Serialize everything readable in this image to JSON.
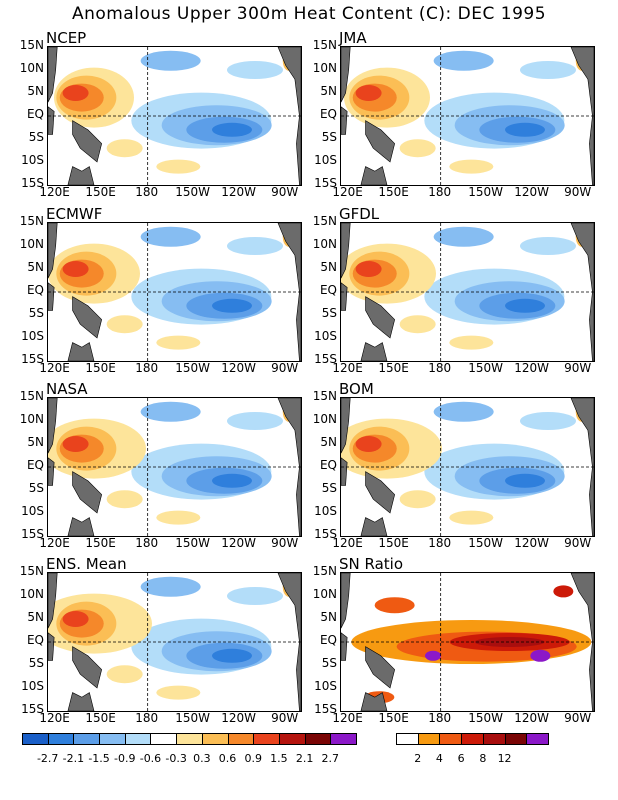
{
  "title": "Anomalous Upper 300m Heat Content (C): DEC 1995",
  "chart_data": {
    "type": "heatmap",
    "x_ticks": [
      "120E",
      "150E",
      "180",
      "150W",
      "120W",
      "90W"
    ],
    "y_ticks": [
      "15N",
      "10N",
      "5N",
      "EQ",
      "5S",
      "10S",
      "15S"
    ],
    "panels": [
      {
        "name": "NCEP"
      },
      {
        "name": "JMA"
      },
      {
        "name": "ECMWF"
      },
      {
        "name": "GFDL"
      },
      {
        "name": "NASA"
      },
      {
        "name": "BOM"
      },
      {
        "name": "ENS. Mean"
      },
      {
        "name": "SN Ratio"
      }
    ],
    "anomaly_colorbar": {
      "colors": [
        "#1a5fc8",
        "#2f7fdc",
        "#5c9ee8",
        "#86bdf2",
        "#b3ddf9",
        "#ffffff",
        "#fde49a",
        "#fbbe55",
        "#f5882a",
        "#e9431d",
        "#b5140e",
        "#7a0505",
        "#8b18c8"
      ],
      "labels": [
        "-2.7",
        "-2.1",
        "-1.5",
        "-0.9",
        "-0.6",
        "-0.3",
        "0.3",
        "0.6",
        "0.9",
        "1.5",
        "2.1",
        "2.7"
      ]
    },
    "sn_colorbar": {
      "colors": [
        "#ffffff",
        "#f79a11",
        "#ef5a12",
        "#cc1a08",
        "#a80e0e",
        "#7a0505",
        "#8b18c8"
      ],
      "labels": [
        "2",
        "4",
        "6",
        "8",
        "12"
      ]
    },
    "land_color": "#6b6b6b"
  }
}
